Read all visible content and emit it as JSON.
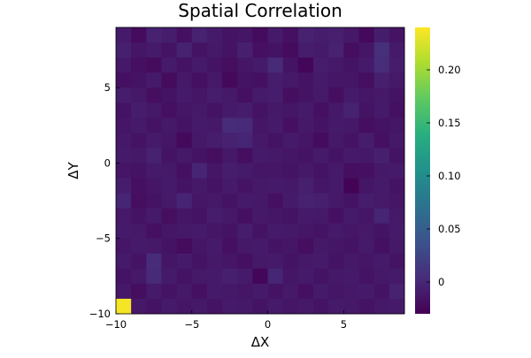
{
  "chart_data": {
    "type": "heatmap",
    "title": "Spatial Correlation",
    "xlabel": "ΔX",
    "ylabel": "ΔY",
    "x_range": [
      -10,
      9
    ],
    "y_range": [
      -10,
      9
    ],
    "x_ticks": [
      -10,
      -5,
      0,
      5
    ],
    "x_tick_labels": [
      "−10",
      "−5",
      "0",
      "5"
    ],
    "y_ticks": [
      -10,
      -5,
      0,
      5
    ],
    "y_tick_labels": [
      "−10",
      "−5",
      "0",
      "5"
    ],
    "colorbar": {
      "min": -0.03,
      "max": 0.24,
      "ticks": [
        0,
        0.05,
        0.1,
        0.15,
        0.2
      ],
      "tick_labels": [
        "0",
        "0.05",
        "0.10",
        "0.15",
        "0.20"
      ],
      "colormap": "viridis"
    },
    "grid": false,
    "cell_size": 1,
    "values_note_rows_top_to_bottom": "rows ordered from dY=8 (top) down to dY=-10 (bottom); columns from dX=-10 to dX=8",
    "values": [
      [
        -0.01,
        -0.022,
        -0.004,
        -0.008,
        -0.018,
        -0.004,
        -0.01,
        -0.016,
        -0.014,
        -0.022,
        -0.01,
        -0.018,
        -0.004,
        -0.008,
        -0.006,
        -0.012,
        -0.024,
        -0.008,
        -0.016
      ],
      [
        -0.006,
        -0.014,
        -0.01,
        -0.016,
        -0.004,
        -0.016,
        -0.012,
        -0.016,
        -0.006,
        -0.018,
        -0.016,
        -0.022,
        -0.008,
        -0.01,
        -0.004,
        -0.02,
        -0.014,
        0.006,
        -0.01
      ],
      [
        -0.012,
        -0.018,
        -0.022,
        -0.01,
        -0.016,
        -0.01,
        -0.016,
        -0.02,
        -0.014,
        -0.01,
        0.002,
        -0.016,
        -0.026,
        -0.008,
        -0.012,
        -0.016,
        -0.01,
        0.004,
        -0.008
      ],
      [
        -0.018,
        -0.016,
        -0.01,
        -0.022,
        -0.012,
        -0.018,
        -0.012,
        -0.024,
        -0.016,
        -0.018,
        -0.008,
        -0.012,
        -0.016,
        -0.01,
        -0.014,
        -0.014,
        -0.02,
        -0.006,
        -0.012
      ],
      [
        -0.008,
        -0.012,
        -0.02,
        -0.016,
        -0.01,
        -0.014,
        -0.008,
        -0.012,
        -0.018,
        -0.01,
        -0.008,
        -0.02,
        -0.016,
        -0.012,
        -0.02,
        -0.01,
        -0.014,
        -0.012,
        -0.016
      ],
      [
        -0.016,
        -0.008,
        -0.012,
        -0.018,
        -0.014,
        -0.012,
        -0.016,
        -0.01,
        -0.008,
        -0.016,
        -0.012,
        -0.014,
        -0.01,
        -0.018,
        -0.012,
        -0.004,
        -0.016,
        -0.01,
        -0.018
      ],
      [
        -0.014,
        -0.01,
        -0.016,
        -0.012,
        -0.016,
        -0.01,
        -0.012,
        0.004,
        0.002,
        -0.014,
        -0.01,
        -0.018,
        -0.012,
        -0.016,
        -0.01,
        -0.012,
        -0.02,
        -0.016,
        -0.014
      ],
      [
        -0.012,
        -0.016,
        -0.01,
        -0.014,
        -0.024,
        -0.012,
        -0.008,
        -0.004,
        -0.002,
        -0.012,
        -0.016,
        -0.01,
        -0.014,
        -0.022,
        -0.012,
        -0.016,
        -0.008,
        -0.018,
        -0.012
      ],
      [
        -0.01,
        -0.012,
        -0.004,
        -0.016,
        -0.012,
        -0.016,
        -0.02,
        -0.012,
        -0.02,
        -0.01,
        -0.012,
        -0.014,
        -0.016,
        -0.01,
        -0.016,
        -0.01,
        -0.012,
        -0.006,
        -0.016
      ],
      [
        -0.014,
        -0.016,
        -0.01,
        -0.012,
        -0.018,
        -0.002,
        -0.014,
        -0.008,
        -0.01,
        -0.014,
        -0.014,
        -0.016,
        -0.012,
        -0.016,
        -0.01,
        -0.02,
        -0.018,
        -0.012,
        -0.01
      ],
      [
        -0.008,
        -0.018,
        -0.014,
        -0.01,
        -0.016,
        -0.012,
        -0.016,
        -0.01,
        -0.016,
        -0.012,
        -0.01,
        -0.012,
        -0.006,
        -0.014,
        -0.01,
        -0.028,
        -0.014,
        -0.01,
        -0.016
      ],
      [
        -0.002,
        -0.02,
        -0.016,
        -0.012,
        -0.002,
        -0.014,
        -0.012,
        -0.016,
        -0.01,
        -0.012,
        -0.018,
        -0.01,
        -0.004,
        -0.006,
        -0.012,
        -0.016,
        -0.008,
        -0.012,
        -0.014
      ],
      [
        -0.012,
        -0.016,
        -0.01,
        -0.02,
        -0.014,
        -0.016,
        -0.008,
        -0.012,
        -0.018,
        -0.012,
        -0.014,
        -0.016,
        -0.01,
        -0.012,
        -0.018,
        -0.01,
        -0.014,
        -0.002,
        -0.012
      ],
      [
        -0.01,
        -0.012,
        -0.018,
        -0.014,
        -0.012,
        -0.01,
        -0.014,
        -0.016,
        -0.008,
        -0.016,
        -0.01,
        -0.012,
        -0.014,
        -0.016,
        -0.01,
        -0.014,
        -0.012,
        -0.016,
        -0.01
      ],
      [
        -0.014,
        -0.01,
        -0.012,
        -0.016,
        -0.022,
        -0.014,
        -0.01,
        -0.018,
        -0.012,
        -0.01,
        -0.016,
        -0.014,
        -0.02,
        -0.012,
        -0.014,
        -0.016,
        -0.01,
        -0.018,
        -0.012
      ],
      [
        -0.01,
        -0.016,
        0.004,
        -0.014,
        -0.01,
        -0.016,
        -0.012,
        -0.014,
        -0.018,
        -0.012,
        -0.01,
        -0.016,
        -0.012,
        -0.01,
        -0.016,
        -0.012,
        -0.014,
        -0.01,
        -0.016
      ],
      [
        -0.016,
        -0.012,
        0.002,
        -0.01,
        -0.016,
        -0.012,
        -0.01,
        -0.006,
        -0.01,
        -0.026,
        -0.002,
        -0.014,
        -0.01,
        -0.016,
        -0.012,
        -0.01,
        -0.016,
        -0.012,
        -0.01
      ],
      [
        -0.012,
        -0.02,
        -0.01,
        -0.016,
        -0.012,
        -0.018,
        -0.01,
        -0.012,
        -0.014,
        -0.01,
        -0.016,
        -0.012,
        -0.018,
        -0.01,
        -0.014,
        -0.012,
        -0.01,
        -0.016,
        -0.004
      ],
      [
        0.236,
        -0.012,
        -0.016,
        -0.01,
        -0.014,
        -0.012,
        -0.016,
        -0.01,
        -0.012,
        -0.016,
        -0.01,
        -0.014,
        -0.012,
        -0.016,
        -0.01,
        -0.012,
        -0.016,
        -0.012,
        -0.01
      ]
    ]
  }
}
